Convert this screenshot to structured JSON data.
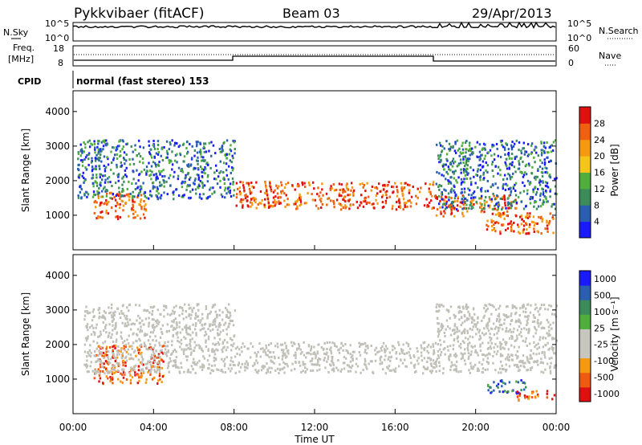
{
  "header": {
    "station": "Pykkvibaer (fitACF)",
    "beam": "Beam 03",
    "date": "29/Apr/2013"
  },
  "noise_panel": {
    "left_label": "N.Sky",
    "right_label": "N.Search",
    "y_ticks": [
      "10^5",
      "10^0"
    ]
  },
  "freq_panel": {
    "left_label_line1": "Freq.",
    "left_label_line2": "[MHz]",
    "right_label": "Nave",
    "left_ticks": [
      "18",
      "8"
    ],
    "right_ticks": [
      "60",
      "0"
    ]
  },
  "cpid": {
    "label": "CPID",
    "mode_text": "normal (fast stereo) 153"
  },
  "colors": {
    "power": [
      "#1a1aff",
      "#2a5fb0",
      "#3c8c5a",
      "#4fae3c",
      "#f5c518",
      "#f59a10",
      "#f06010",
      "#e01010"
    ],
    "velocity": [
      "#e01010",
      "#f05a10",
      "#f59a10",
      "#c7c7c0",
      "#c7c7c0",
      "#4fae3c",
      "#3c8c5a",
      "#2a5fb0",
      "#1a1aff"
    ],
    "ground_scatter": "#c0c0b8"
  },
  "chart_data": [
    {
      "type": "heatmap",
      "title": "Power",
      "ylabel": "Slant Range [km]",
      "y_ticks": [
        "1000",
        "2000",
        "3000",
        "4000"
      ],
      "ylim": [
        0,
        4600
      ],
      "colorbar_label": "Power [dB]",
      "colorbar_ticks": [
        "4",
        "8",
        "12",
        "16",
        "20",
        "24",
        "28"
      ],
      "bands": [
        {
          "x": [
            1.0,
            3.6
          ],
          "range": [
            900,
            1700
          ],
          "level": "strong"
        },
        {
          "x": [
            0.2,
            8.0
          ],
          "range": [
            1500,
            3200
          ],
          "level": "weak"
        },
        {
          "x": [
            8.0,
            18.0
          ],
          "range": [
            1200,
            2000
          ],
          "level": "strong"
        },
        {
          "x": [
            18.0,
            22.0
          ],
          "range": [
            1000,
            1600
          ],
          "level": "strong"
        },
        {
          "x": [
            20.5,
            24.0
          ],
          "range": [
            500,
            1100
          ],
          "level": "strong"
        },
        {
          "x": [
            18.0,
            24.0
          ],
          "range": [
            1200,
            3200
          ],
          "level": "weak"
        }
      ]
    },
    {
      "type": "heatmap",
      "title": "Velocity",
      "ylabel": "Slant Range [km]",
      "y_ticks": [
        "1000",
        "2000",
        "3000",
        "4000"
      ],
      "ylim": [
        0,
        4600
      ],
      "xlabel": "Time UT",
      "x_ticks": [
        "00:00",
        "04:00",
        "08:00",
        "12:00",
        "16:00",
        "20:00",
        "00:00"
      ],
      "xlim": [
        0,
        24
      ],
      "colorbar_label": "Velocity [m s⁻¹]",
      "colorbar_ticks": [
        "1000",
        "500",
        "100",
        "25",
        "-25",
        "-100",
        "-500",
        "-1000"
      ],
      "bands": [
        {
          "x": [
            1.0,
            4.5
          ],
          "range": [
            900,
            2000
          ],
          "level": "negative"
        },
        {
          "x": [
            0.5,
            8.0
          ],
          "range": [
            1200,
            3200
          ],
          "level": "ground"
        },
        {
          "x": [
            8.0,
            18.0
          ],
          "range": [
            1200,
            2100
          ],
          "level": "ground"
        },
        {
          "x": [
            18.0,
            24.0
          ],
          "range": [
            1200,
            3200
          ],
          "level": "ground"
        },
        {
          "x": [
            20.5,
            22.5
          ],
          "range": [
            600,
            1000
          ],
          "level": "positive"
        },
        {
          "x": [
            22.0,
            24.0
          ],
          "range": [
            400,
            700
          ],
          "level": "negative"
        }
      ]
    }
  ]
}
